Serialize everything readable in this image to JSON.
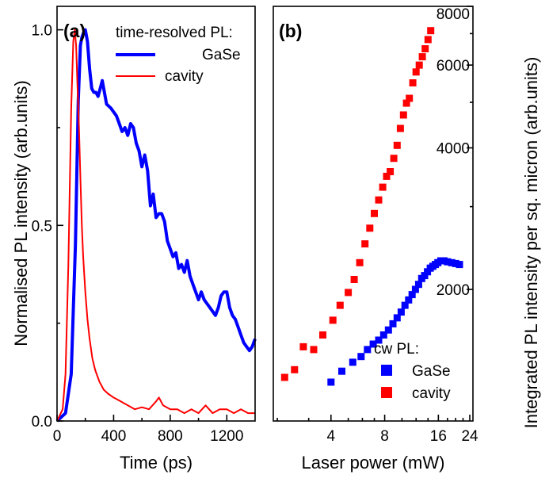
{
  "chart_data": [
    {
      "panel_label": "(a)",
      "type": "line",
      "xlabel": "Time (ps)",
      "ylabel": "Normalised PL intensity (arb.units)",
      "xlim": [
        0,
        1400
      ],
      "ylim": [
        0,
        1.06
      ],
      "x_ticks": [
        0,
        400,
        800,
        1200
      ],
      "x_tick_labels": [
        "0",
        "400",
        "800",
        "1200"
      ],
      "y_ticks": [
        0.0,
        0.5,
        1.0
      ],
      "y_tick_labels": [
        "0.0",
        "0.5",
        "1.0"
      ],
      "legend_title": "time-resolved PL:",
      "legend_position": "top-right",
      "series": [
        {
          "name": "GaSe",
          "color": "#0000ff",
          "x": [
            0,
            60,
            100,
            130,
            150,
            165,
            175,
            185,
            200,
            215,
            230,
            245,
            260,
            275,
            290,
            305,
            320,
            335,
            350,
            380,
            400,
            420,
            440,
            460,
            480,
            500,
            520,
            540,
            560,
            580,
            600,
            620,
            640,
            660,
            680,
            700,
            720,
            740,
            760,
            780,
            800,
            820,
            840,
            860,
            880,
            900,
            920,
            940,
            960,
            980,
            1000,
            1020,
            1040,
            1060,
            1080,
            1100,
            1120,
            1140,
            1160,
            1180,
            1200,
            1220,
            1240,
            1260,
            1280,
            1300,
            1320,
            1340,
            1360,
            1380,
            1400
          ],
          "values": [
            0.0,
            0.02,
            0.12,
            0.45,
            0.82,
            0.96,
            0.98,
            0.99,
            1.0,
            0.97,
            0.9,
            0.85,
            0.84,
            0.84,
            0.83,
            0.85,
            0.87,
            0.84,
            0.81,
            0.8,
            0.79,
            0.78,
            0.76,
            0.74,
            0.75,
            0.73,
            0.76,
            0.75,
            0.71,
            0.69,
            0.65,
            0.68,
            0.64,
            0.55,
            0.58,
            0.52,
            0.53,
            0.53,
            0.51,
            0.46,
            0.44,
            0.42,
            0.43,
            0.39,
            0.4,
            0.38,
            0.41,
            0.37,
            0.35,
            0.33,
            0.31,
            0.33,
            0.31,
            0.3,
            0.29,
            0.28,
            0.27,
            0.29,
            0.32,
            0.33,
            0.33,
            0.29,
            0.27,
            0.26,
            0.24,
            0.22,
            0.2,
            0.19,
            0.18,
            0.19,
            0.21
          ]
        },
        {
          "name": "cavity",
          "color": "#ff0000",
          "x": [
            0,
            40,
            60,
            80,
            100,
            115,
            125,
            135,
            145,
            155,
            165,
            175,
            185,
            200,
            215,
            230,
            250,
            270,
            300,
            330,
            360,
            400,
            450,
            500,
            550,
            600,
            650,
            700,
            720,
            750,
            800,
            850,
            900,
            950,
            1000,
            1050,
            1100,
            1150,
            1200,
            1250,
            1300,
            1350,
            1400
          ],
          "values": [
            0.0,
            0.03,
            0.12,
            0.4,
            0.8,
            0.97,
            1.0,
            0.96,
            0.85,
            0.75,
            0.62,
            0.5,
            0.42,
            0.33,
            0.26,
            0.21,
            0.16,
            0.13,
            0.1,
            0.08,
            0.07,
            0.06,
            0.05,
            0.04,
            0.03,
            0.035,
            0.03,
            0.05,
            0.06,
            0.04,
            0.03,
            0.03,
            0.02,
            0.03,
            0.02,
            0.04,
            0.02,
            0.03,
            0.03,
            0.02,
            0.03,
            0.02,
            0.02
          ]
        }
      ]
    },
    {
      "panel_label": "(b)",
      "type": "scatter",
      "xlabel": "Laser power (mW)",
      "ylabel": "Integrated PL intensity per sq. micron (arb.units)",
      "x_scale": "log",
      "y_scale": "log",
      "xlim": [
        1.9,
        25
      ],
      "ylim": [
        1050,
        8000
      ],
      "x_ticks": [
        4,
        8,
        16,
        24
      ],
      "x_tick_labels": [
        "4",
        "8",
        "16",
        "24"
      ],
      "y_ticks": [
        2000,
        4000,
        6000,
        8000
      ],
      "y_tick_labels": [
        "2000",
        "4000",
        "6000",
        "8000"
      ],
      "legend_title": "cw PL:",
      "legend_position": "bottom-right",
      "series": [
        {
          "name": "GaSe",
          "color": "#0000ff",
          "x": [
            4.0,
            4.6,
            5.3,
            5.9,
            6.4,
            6.9,
            7.4,
            7.9,
            8.4,
            8.9,
            9.4,
            9.9,
            10.4,
            10.9,
            11.4,
            11.9,
            12.4,
            12.9,
            13.4,
            13.9,
            14.4,
            14.9,
            15.4,
            15.9,
            16.5,
            17.2,
            18.0,
            19.0,
            20.0,
            21.0
          ],
          "values": [
            1270,
            1340,
            1400,
            1440,
            1490,
            1530,
            1560,
            1600,
            1640,
            1690,
            1740,
            1790,
            1850,
            1900,
            1950,
            2000,
            2050,
            2110,
            2140,
            2180,
            2220,
            2240,
            2260,
            2280,
            2300,
            2300,
            2290,
            2280,
            2270,
            2260
          ]
        },
        {
          "name": "cavity",
          "color": "#ff0000",
          "x": [
            2.2,
            2.5,
            2.8,
            3.2,
            3.6,
            4.1,
            4.5,
            5.0,
            5.4,
            5.8,
            6.2,
            6.6,
            7.0,
            7.4,
            7.8,
            8.2,
            8.6,
            9.0,
            9.4,
            9.8,
            10.2,
            10.6,
            11.0,
            11.5,
            12.0,
            12.5,
            13.0,
            13.5,
            14.0,
            14.5
          ],
          "values": [
            1300,
            1350,
            1510,
            1490,
            1600,
            1720,
            1850,
            1970,
            2100,
            2280,
            2500,
            2700,
            2900,
            3100,
            3300,
            3480,
            3560,
            3800,
            4050,
            4400,
            4700,
            4980,
            5100,
            5500,
            5800,
            6000,
            6250,
            6500,
            6800,
            7100
          ]
        }
      ]
    }
  ]
}
